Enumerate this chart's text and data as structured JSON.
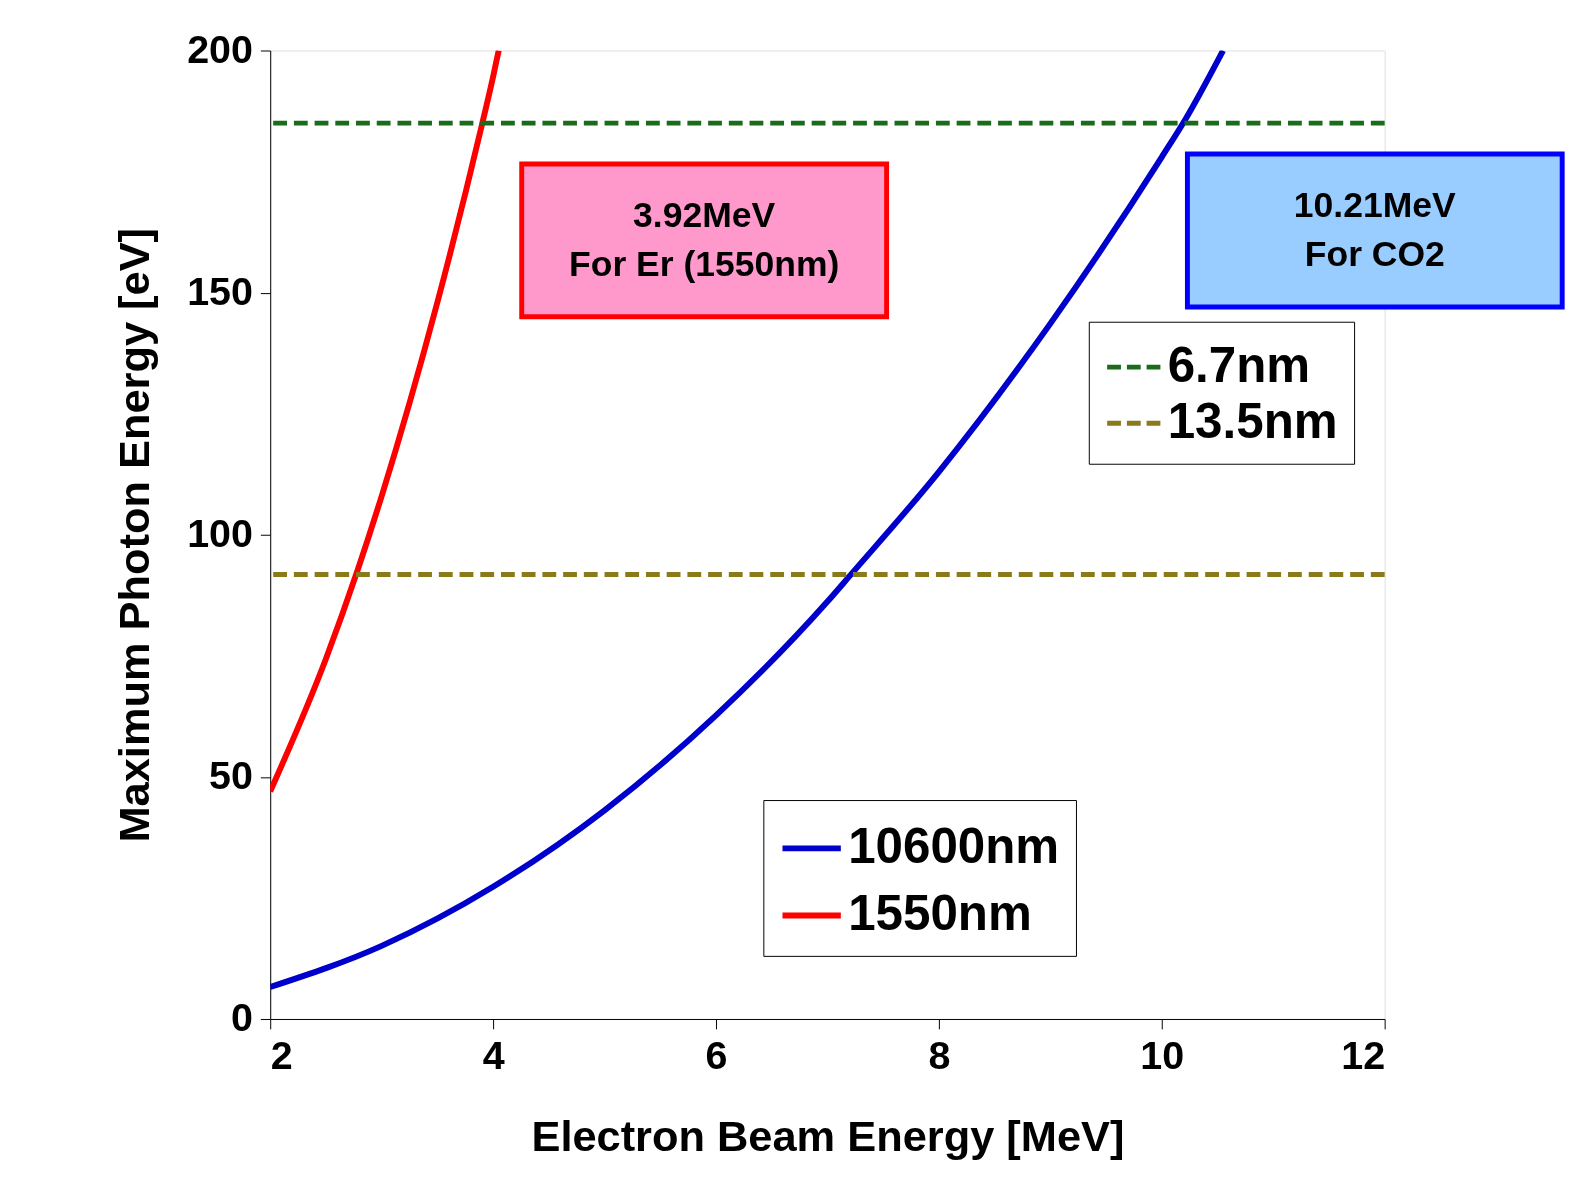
{
  "chart_data": {
    "type": "line",
    "xlabel": "Electron Beam Energy [MeV]",
    "ylabel": "Maximum Photon Energy [eV]",
    "xlim": [
      2,
      12
    ],
    "xticks": [
      2,
      4,
      6,
      8,
      10,
      12
    ],
    "ylim": [
      0,
      200
    ],
    "yticks": [
      0,
      50,
      100,
      150,
      200
    ],
    "grid": false,
    "legend": "bottom right",
    "line_style": "solid",
    "series": [
      {
        "name": "10600nm",
        "color": "#0000cc",
        "x": [
          2,
          3,
          4,
          5,
          6,
          7,
          7.2,
          8,
          9,
          10,
          10.21,
          10.55
        ],
        "values": [
          6.6,
          15.1,
          27.3,
          43.1,
          62.7,
          86.2,
          91.5,
          113,
          143.6,
          178,
          185.7,
          200
        ]
      },
      {
        "name": "1550nm",
        "color": "#ff0000",
        "x": [
          2,
          2.5,
          2.78,
          3,
          3.5,
          3.9,
          4,
          4.05
        ],
        "values": [
          47,
          74.4,
          92.4,
          108,
          148,
          184.7,
          194.6,
          200
        ]
      }
    ],
    "ref_lines": [
      {
        "axis": "y",
        "value": 185,
        "label": "6.7nm",
        "color": "#1a6b1a",
        "line_style": "dashed"
      },
      {
        "axis": "y",
        "value": 91.8,
        "label": "13.5nm",
        "color": "#8b7a1a",
        "line_style": "dashed"
      }
    ],
    "annotations": [
      "3.92MeV\nFor Er (1550nm)",
      "10.21MeV\nFor CO2"
    ]
  }
}
